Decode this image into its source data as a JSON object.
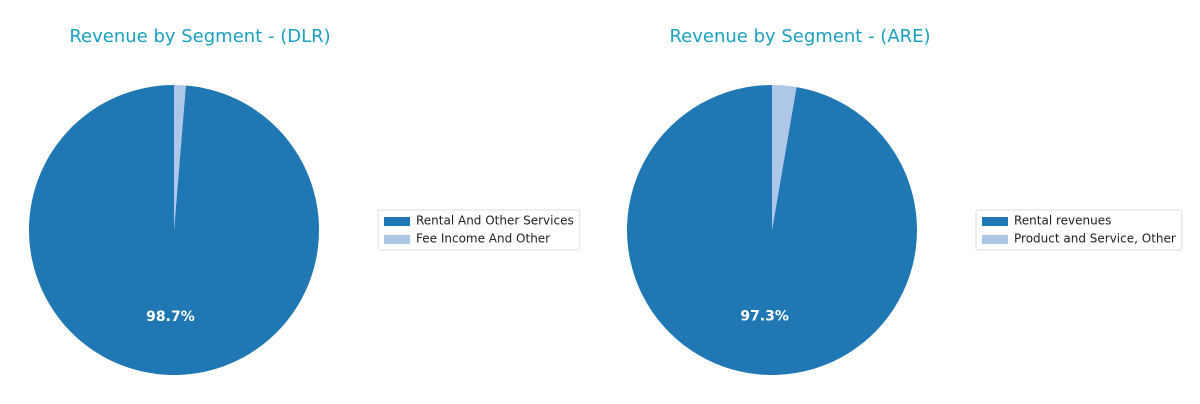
{
  "chart_data": [
    {
      "type": "pie",
      "title": "Revenue by Segment - (DLR)",
      "categories": [
        "Rental And Other Services",
        "Fee Income And Other"
      ],
      "values": [
        98.7,
        1.3
      ],
      "value_labels": [
        "98.7%",
        null
      ],
      "colors": [
        "#1f77b4",
        "#aec7e8"
      ],
      "legend": "right"
    },
    {
      "type": "pie",
      "title": "Revenue by Segment - (ARE)",
      "categories": [
        "Rental revenues",
        "Product and Service, Other"
      ],
      "values": [
        97.3,
        2.7
      ],
      "value_labels": [
        "97.3%",
        null
      ],
      "colors": [
        "#1f77b4",
        "#aec7e8"
      ],
      "legend": "right"
    }
  ]
}
